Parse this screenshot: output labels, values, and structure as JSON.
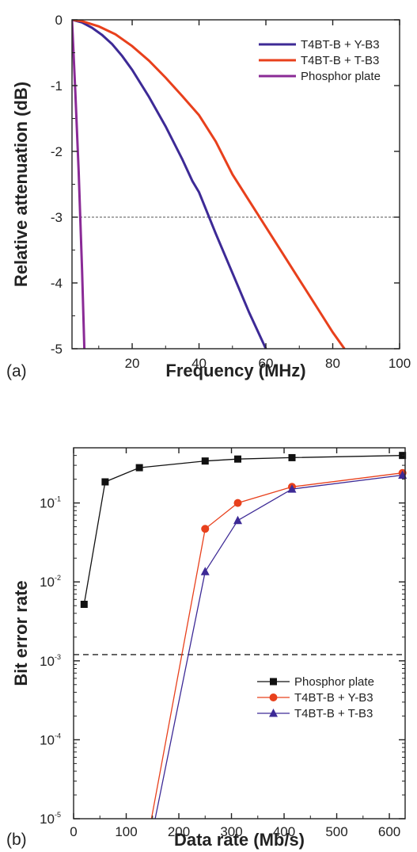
{
  "chart_data": [
    {
      "panel_label": "(a)",
      "type": "line",
      "xlabel": "Frequency (MHz)",
      "ylabel": "Relative attenuation (dB)",
      "xlim": [
        2,
        100
      ],
      "ylim": [
        -5,
        0
      ],
      "xticks": [
        20,
        40,
        60,
        80,
        100
      ],
      "yticks": [
        0,
        -1,
        -2,
        -3,
        -4,
        -5
      ],
      "xtick_labels": [
        "20",
        "40",
        "60",
        "80",
        "100"
      ],
      "ytick_labels": [
        "0",
        "-1",
        "-2",
        "-3",
        "-4",
        "-5"
      ],
      "reference_line": {
        "y": -3,
        "style": "dashed"
      },
      "grid": false,
      "legend_position": "top-right",
      "series": [
        {
          "name": "T4BT-B + Y-B3",
          "color": "#3d2a96",
          "x": [
            2,
            5,
            8,
            11,
            14,
            17,
            20,
            25,
            30,
            35,
            38,
            40,
            45,
            50,
            55,
            60
          ],
          "y": [
            0,
            -0.04,
            -0.12,
            -0.23,
            -0.37,
            -0.55,
            -0.76,
            -1.17,
            -1.62,
            -2.12,
            -2.45,
            -2.62,
            -3.25,
            -3.85,
            -4.45,
            -5.0
          ]
        },
        {
          "name": "T4BT-B + T-B3",
          "color": "#e8401c",
          "x": [
            2,
            5,
            10,
            15,
            20,
            25,
            30,
            35,
            40,
            45,
            50,
            55,
            60,
            65,
            70,
            75,
            80,
            83.5
          ],
          "y": [
            0,
            -0.02,
            -0.1,
            -0.22,
            -0.4,
            -0.62,
            -0.88,
            -1.16,
            -1.45,
            -1.85,
            -2.35,
            -2.75,
            -3.15,
            -3.55,
            -3.95,
            -4.35,
            -4.75,
            -5.0
          ]
        },
        {
          "name": "Phosphor plate",
          "color": "#8a2a96",
          "x": [
            2,
            3,
            4,
            5,
            5.7
          ],
          "y": [
            0,
            -1.1,
            -2.3,
            -3.8,
            -5.0
          ]
        }
      ]
    },
    {
      "panel_label": "(b)",
      "type": "line",
      "xlabel": "Data rate (Mb/s)",
      "ylabel": "Bit error rate",
      "xlim": [
        0,
        630
      ],
      "ylim": [
        1e-05,
        0.5
      ],
      "yscale": "log",
      "xticks": [
        0,
        100,
        200,
        300,
        400,
        500,
        600
      ],
      "xtick_labels": [
        "0",
        "100",
        "200",
        "300",
        "400",
        "500",
        "600"
      ],
      "yticks": [
        1e-05,
        0.0001,
        0.001,
        0.01,
        0.1
      ],
      "ytick_labels": [
        {
          "base": "10",
          "exp": "-5"
        },
        {
          "base": "10",
          "exp": "-4"
        },
        {
          "base": "10",
          "exp": "-3"
        },
        {
          "base": "10",
          "exp": "-2"
        },
        {
          "base": "10",
          "exp": "-1"
        }
      ],
      "reference_line": {
        "y": 0.0012,
        "style": "dashed"
      },
      "grid": false,
      "legend_position": "bottom-right",
      "series": [
        {
          "name": "Phosphor plate",
          "color": "#111111",
          "marker": "square",
          "x": [
            20,
            60,
            125,
            250,
            312,
            415,
            625
          ],
          "y": [
            0.0052,
            0.185,
            0.28,
            0.34,
            0.36,
            0.375,
            0.4
          ]
        },
        {
          "name": "T4BT-B + Y-B3",
          "color": "#e8401c",
          "marker": "circle",
          "x": [
            148,
            250,
            312,
            415,
            625
          ],
          "y": [
            1e-05,
            0.047,
            0.1,
            0.16,
            0.24
          ]
        },
        {
          "name": "T4BT-B + T-B3",
          "color": "#3d2a96",
          "marker": "triangle",
          "x": [
            155,
            250,
            312,
            415,
            625
          ],
          "y": [
            1e-05,
            0.0135,
            0.06,
            0.15,
            0.225
          ]
        }
      ]
    }
  ]
}
